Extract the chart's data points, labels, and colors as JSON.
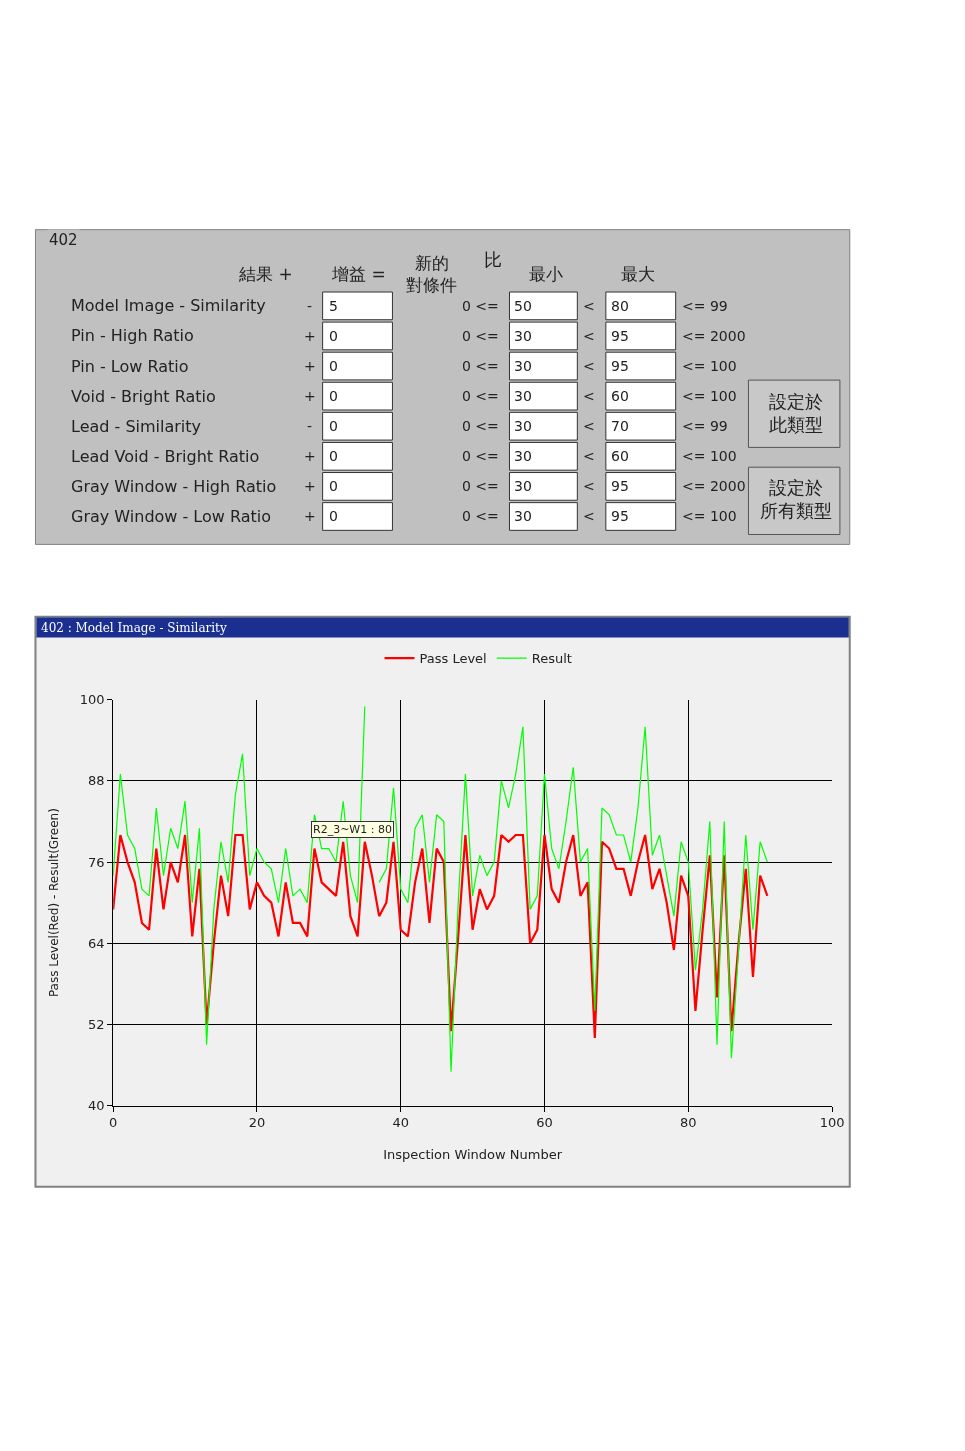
{
  "chart_data": [
    {
      "type": "other",
      "title": "402",
      "categories": [
        "結果 +",
        "增益 =",
        "新的對條件",
        "最小",
        null,
        "最大",
        null
      ],
      "y_categories": [
        "Model Image - Similarity",
        "Pin - High Ratio",
        "Pin - Low Ratio",
        "Void - Bright Ratio",
        "Lead - Similarity",
        "Lead Void - Bright Ratio",
        "Gray Window - High Ratio",
        "Gray Window - Low Ratio"
      ],
      "cell_labels": [
        [
          "-",
          "5",
          "0 <=",
          "50",
          "<",
          "80",
          "<= 99"
        ],
        [
          "+",
          "0",
          "0 <=",
          "30",
          "<",
          "95",
          "<= 2000"
        ],
        [
          "+",
          "0",
          "0 <=",
          "30",
          "<",
          "95",
          "<= 100"
        ],
        [
          "+",
          "0",
          "0 <=",
          "30",
          "<",
          "60",
          "<= 100"
        ],
        [
          "-",
          "0",
          "0 <=",
          "30",
          "<",
          "70",
          "<= 99"
        ],
        [
          "+",
          "0",
          "0 <=",
          "30",
          "<",
          "60",
          "<= 100"
        ],
        [
          "+",
          "0",
          "0 <=",
          "30",
          "<",
          "95",
          "<= 2000"
        ],
        [
          "+",
          "0",
          "0 <=",
          "30",
          "<",
          "95",
          "<= 100"
        ]
      ],
      "annotations": [
        "比",
        "設定於此類型",
        "設定於所有類型"
      ]
    },
    {
      "type": "line",
      "title": "402 : Model Image - Similarity",
      "xlabel": "Inspection Window Number",
      "ylabel": "Pass Level(Red) - Result(Green)",
      "x": [
        0,
        1,
        2,
        3,
        4,
        5,
        6,
        7,
        8,
        9,
        10,
        11,
        12,
        13,
        14,
        15,
        16,
        17,
        18,
        19,
        20,
        21,
        22,
        23,
        24,
        25,
        26,
        27,
        28,
        29,
        30,
        31,
        32,
        33,
        34,
        35,
        36,
        37,
        38,
        39,
        40,
        41,
        42,
        43,
        44,
        45,
        46,
        47,
        48,
        49,
        50,
        51,
        52,
        53,
        54,
        55,
        56,
        57,
        58,
        59,
        60,
        61,
        62,
        63,
        64,
        65,
        66,
        67,
        68,
        69,
        70,
        71,
        72,
        73,
        74,
        75,
        76,
        77,
        78,
        79,
        80,
        81,
        82,
        83,
        84,
        85,
        86,
        87,
        88,
        89,
        90,
        91
      ],
      "series": [
        {
          "name": "Pass Level",
          "color": "#ff0000",
          "values": [
            69,
            80,
            76,
            73,
            67,
            66,
            78,
            69,
            76,
            73,
            80,
            65,
            75,
            52,
            64,
            74,
            68,
            80,
            80,
            69,
            73,
            71,
            70,
            65,
            73,
            67,
            67,
            65,
            78,
            73,
            72,
            71,
            79,
            68,
            65,
            79,
            74,
            68,
            70,
            79,
            66,
            65,
            73,
            78,
            67,
            78,
            76,
            51,
            65,
            80,
            66,
            72,
            69,
            71,
            80,
            79,
            80,
            80,
            64,
            66,
            80,
            72,
            70,
            76,
            80,
            71,
            73,
            50,
            79,
            78,
            75,
            75,
            71,
            76,
            80,
            72,
            75,
            70,
            63,
            74,
            71,
            54,
            66,
            77,
            56,
            77,
            51,
            64,
            75,
            59,
            74,
            71
          ]
        },
        {
          "name": "Result",
          "color": "#00ff00",
          "values": [
            74,
            89,
            80,
            78,
            72,
            71,
            84,
            74,
            81,
            78,
            85,
            70,
            81,
            49,
            69,
            79,
            73,
            86,
            92,
            74,
            78,
            76,
            75,
            70,
            78,
            71,
            72,
            70,
            83,
            78,
            78,
            76,
            85,
            74,
            70,
            99,
            null,
            73,
            75,
            87,
            72,
            70,
            81,
            83,
            73,
            83,
            82,
            45,
            70,
            89,
            71,
            77,
            74,
            76,
            88,
            84,
            89,
            96,
            69,
            71,
            89,
            78,
            75,
            82,
            90,
            76,
            78,
            54,
            84,
            83,
            80,
            80,
            76,
            84,
            96,
            77,
            80,
            74,
            68,
            79,
            76,
            60,
            69,
            82,
            49,
            82,
            47,
            63,
            80,
            66,
            79,
            76
          ]
        }
      ],
      "xlim": [
        0,
        100
      ],
      "xticks": [
        0,
        20,
        40,
        60,
        80,
        100
      ],
      "ylim": [
        40,
        100
      ],
      "yticks": [
        40,
        52,
        64,
        76,
        88,
        100
      ],
      "grid": true,
      "legend": "top",
      "marker": "none",
      "line_style": "solid",
      "annotations": [
        {
          "text": "R2_3~W1 : 80",
          "x": 39,
          "y": 80
        }
      ]
    }
  ]
}
